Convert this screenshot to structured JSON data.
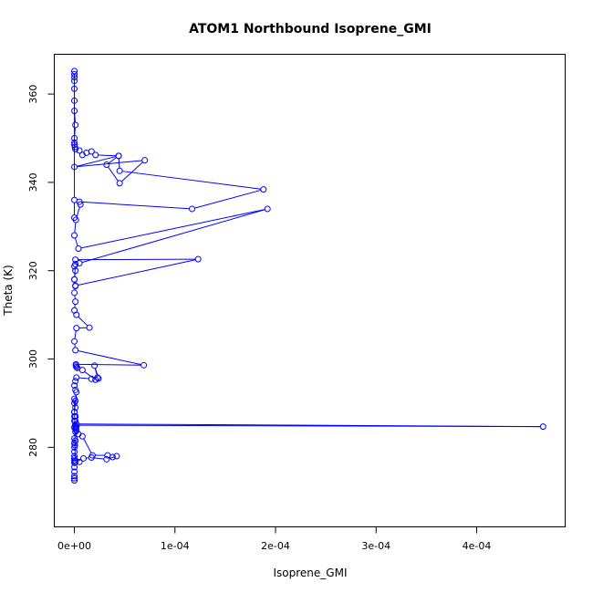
{
  "chart_data": {
    "type": "line",
    "title": "ATOM1 Northbound Isoprene_GMI",
    "xlabel": "Isoprene_GMI",
    "ylabel": "Theta (K)",
    "xlim": [
      -2e-05,
      0.000488
    ],
    "ylim": [
      262,
      369
    ],
    "x_ticks": [
      0,
      0.0001,
      0.0002,
      0.0003,
      0.0004
    ],
    "x_tick_labels": [
      "0e+00",
      "1e-04",
      "2e-04",
      "3e-04",
      "4e-04"
    ],
    "y_ticks": [
      280,
      300,
      320,
      340,
      360
    ],
    "y_tick_labels": [
      "280",
      "300",
      "320",
      "340",
      "360"
    ],
    "grid": false,
    "color": "#0000ff",
    "marker": "open-circle",
    "series": [
      {
        "x": [
          0,
          0,
          0,
          0,
          0,
          0,
          0,
          0,
          0,
          0,
          0,
          5e-07,
          0,
          1e-06,
          0,
          1e-06,
          0,
          1e-06,
          0,
          1e-06,
          0,
          1e-06,
          0,
          1e-06,
          0,
          8e-07,
          5e-06,
          8e-07,
          9e-06,
          1.7e-05,
          3.2e-05,
          4.2e-05,
          3.8e-05,
          3.3e-05,
          1.8e-05,
          8e-06,
          4e-06,
          2e-06,
          1e-06,
          1.5e-06,
          2e-06,
          7e-07,
          0.000466,
          2e-06,
          1e-06,
          0,
          0,
          2e-06,
          1e-06,
          0,
          1e-06,
          2e-06,
          1.7e-05,
          2.3e-05,
          2e-05,
          2.4e-05,
          2.1e-05,
          8e-06,
          3e-06,
          1.5e-06,
          2e-06,
          1.5e-06,
          6.9e-05,
          1e-06,
          0,
          2e-06,
          1.5e-05,
          2e-06,
          0,
          1e-06,
          0,
          1e-06,
          0,
          1e-06,
          0,
          1e-06,
          0.000123,
          1e-06,
          0,
          1e-06,
          5e-06,
          0.000192,
          4e-06,
          0,
          1.5e-06,
          6e-06,
          5e-06,
          0.000117,
          0.000188,
          4.5e-05,
          4.4e-05,
          0.0,
          7e-05,
          4.5e-05,
          3.2e-05,
          4.4e-05,
          2.1e-05,
          1.7e-05,
          1.2e-05,
          8e-06,
          5e-06,
          1e-06,
          5e-07,
          0,
          0,
          0,
          1e-06,
          0,
          0,
          0,
          0,
          0,
          0,
          0,
          0,
          0
        ],
        "y": [
          272.5,
          273.0,
          273.5,
          274.5,
          275.5,
          276.5,
          277.0,
          277.5,
          278.0,
          279.0,
          280.0,
          280.5,
          281.0,
          281.5,
          282.0,
          283.5,
          284.5,
          285.0,
          286.0,
          287.0,
          288.0,
          289.0,
          290.0,
          290.5,
          291.0,
          277.0,
          276.7,
          276.6,
          277.5,
          277.7,
          277.3,
          278.0,
          277.8,
          278.2,
          278.2,
          282.5,
          283.0,
          283.8,
          284.2,
          284.5,
          284.7,
          285.0,
          284.7,
          285.3,
          286.0,
          287.0,
          288.0,
          292.5,
          293.0,
          294.0,
          295.0,
          295.8,
          295.5,
          295.8,
          298.5,
          295.6,
          295.3,
          297.5,
          298.0,
          298.5,
          298.2,
          298.8,
          298.6,
          302.0,
          304.0,
          307.0,
          307.1,
          310.0,
          311.0,
          313.0,
          315.0,
          316.5,
          318.0,
          320.0,
          321.0,
          322.5,
          322.6,
          316.6,
          318.0,
          321.5,
          321.7,
          334.0,
          325.0,
          328.0,
          331.5,
          335.0,
          335.6,
          334.0,
          338.4,
          342.6,
          346.0,
          343.5,
          345.0,
          339.8,
          344.0,
          346.0,
          346.2,
          347.0,
          346.7,
          346.2,
          347.2,
          347.5,
          348.0,
          348.5,
          349.0,
          350.0,
          353.0,
          356.2,
          358.5,
          361.2,
          363.0,
          363.8,
          364.5,
          365.2,
          336.0,
          332.0
        ]
      }
    ]
  }
}
